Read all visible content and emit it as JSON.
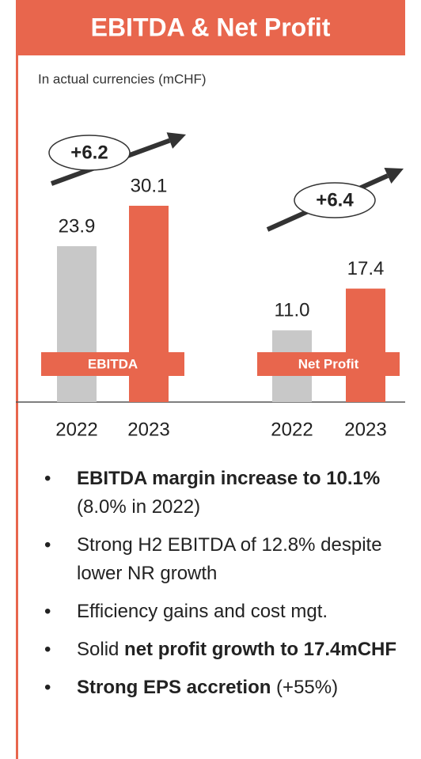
{
  "chart_data": {
    "type": "bar",
    "title": "EBITDA & Net Profit",
    "subtitle": "In actual currencies (mCHF)",
    "colors": [
      "#c8c8c8",
      "#e8664d"
    ],
    "groups": [
      {
        "name": "EBITDA",
        "categories": [
          "2022",
          "2023"
        ],
        "values": [
          23.9,
          30.1
        ],
        "value_labels": [
          "23.9",
          "30.1"
        ],
        "annotation": "+6.2"
      },
      {
        "name": "Net Profit",
        "categories": [
          "2022",
          "2023"
        ],
        "values": [
          11.0,
          17.4
        ],
        "value_labels": [
          "11.0",
          "17.4"
        ],
        "annotation": "+6.4"
      }
    ]
  },
  "bullets": [
    [
      {
        "text": "EBITDA margin increase to 10.1%",
        "bold": true
      },
      {
        "text": " (8.0% in 2022)"
      }
    ],
    [
      {
        "text": "Strong H2 EBITDA of 12.8% despite lower NR growth"
      }
    ],
    [
      {
        "text": "Efficiency gains and cost mgt."
      }
    ],
    [
      {
        "text": "Solid "
      },
      {
        "text": "net profit growth to 17.4mCHF",
        "bold": true
      }
    ],
    [
      {
        "text": "Strong EPS accretion",
        "bold": true
      },
      {
        "text": " (+55%)"
      }
    ]
  ]
}
